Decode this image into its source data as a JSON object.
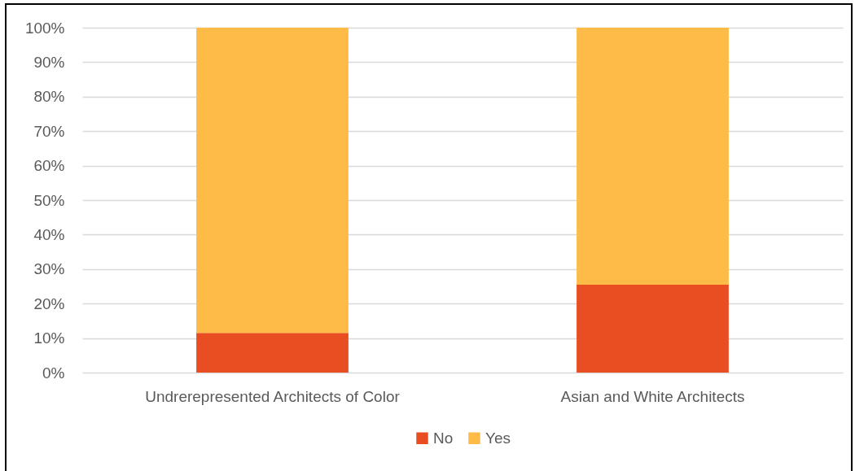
{
  "chart_data": {
    "type": "bar",
    "categories": [
      "Undrerepresented Architects of Color",
      "Asian and White Architects"
    ],
    "series": [
      {
        "name": "No",
        "color": "#e84e22",
        "values": [
          11.5,
          25.5
        ]
      },
      {
        "name": "Yes",
        "color": "#ffbb47",
        "values": [
          88.5,
          74.5
        ]
      }
    ],
    "stacked": true,
    "ylim": [
      0,
      100
    ],
    "yticks": [
      {
        "value": 0,
        "label": "0%"
      },
      {
        "value": 10,
        "label": "10%"
      },
      {
        "value": 20,
        "label": "20%"
      },
      {
        "value": 30,
        "label": "30%"
      },
      {
        "value": 40,
        "label": "40%"
      },
      {
        "value": 50,
        "label": "50%"
      },
      {
        "value": 60,
        "label": "60%"
      },
      {
        "value": 70,
        "label": "70%"
      },
      {
        "value": 80,
        "label": "80%"
      },
      {
        "value": 90,
        "label": "90%"
      },
      {
        "value": 100,
        "label": "100%"
      }
    ],
    "grid": "y",
    "legend": "bottom"
  }
}
